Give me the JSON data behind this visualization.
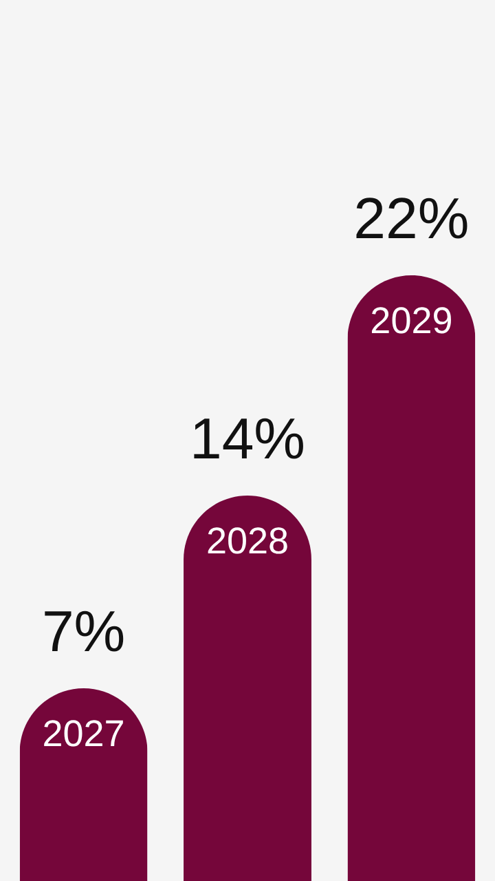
{
  "chart_data": {
    "type": "bar",
    "categories": [
      "2027",
      "2028",
      "2029"
    ],
    "values": [
      7,
      14,
      22
    ],
    "color": "#75063a",
    "value_labels": [
      "7%",
      "14%",
      "22%"
    ],
    "ylim": [
      0,
      32
    ]
  }
}
